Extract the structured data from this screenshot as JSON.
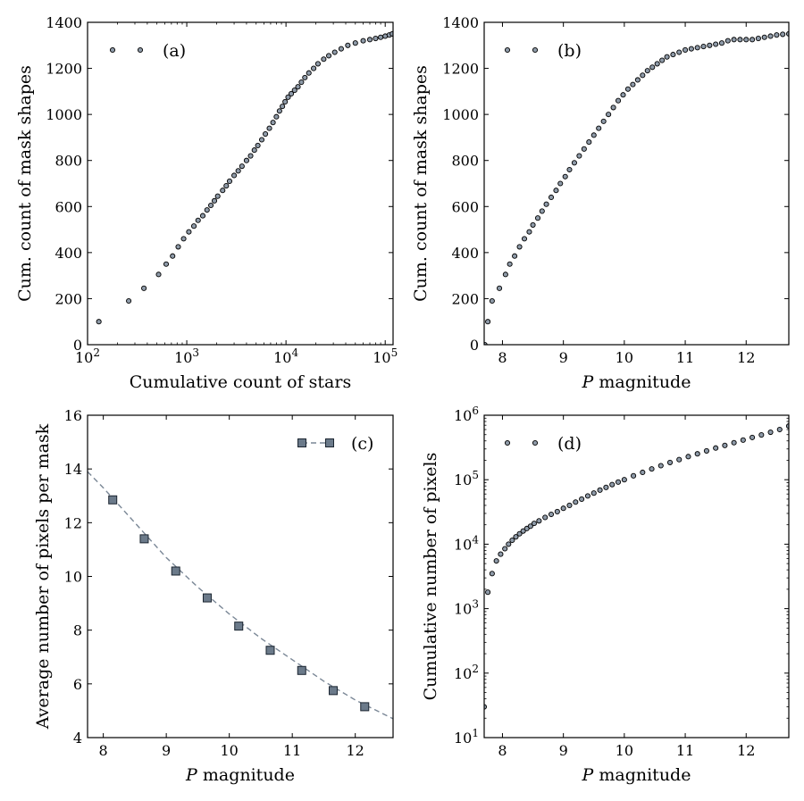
{
  "chart_data": [
    {
      "id": "a",
      "type": "scatter",
      "xscale": "log",
      "yscale": "linear",
      "xlim": [
        100,
        120000
      ],
      "ylim": [
        0,
        1400
      ],
      "xlabel": "Cumulative count of stars",
      "ylabel": "Cum. count of mask shapes",
      "legend": "(a)",
      "xticks": [
        {
          "v": 100,
          "b": "10",
          "e": "2"
        },
        {
          "v": 1000,
          "b": "10",
          "e": "3"
        },
        {
          "v": 10000,
          "b": "10",
          "e": "4"
        },
        {
          "v": 100000,
          "b": "10",
          "e": "5"
        }
      ],
      "yticks": [
        {
          "v": 0,
          "t": "0"
        },
        {
          "v": 200,
          "t": "200"
        },
        {
          "v": 400,
          "t": "400"
        },
        {
          "v": 600,
          "t": "600"
        },
        {
          "v": 800,
          "t": "800"
        },
        {
          "v": 1000,
          "t": "1000"
        },
        {
          "v": 1200,
          "t": "1200"
        },
        {
          "v": 1400,
          "t": "1400"
        }
      ],
      "series": [
        {
          "name": "(a)",
          "x": [
            130,
            260,
            370,
            520,
            620,
            720,
            820,
            930,
            1050,
            1180,
            1300,
            1450,
            1600,
            1750,
            1900,
            2050,
            2300,
            2500,
            2700,
            3000,
            3300,
            3600,
            4000,
            4400,
            4800,
            5200,
            5700,
            6200,
            6800,
            7400,
            8000,
            8600,
            9200,
            9800,
            10500,
            11300,
            12200,
            13200,
            14300,
            15500,
            17000,
            19000,
            21000,
            24000,
            27000,
            31000,
            36000,
            42000,
            50000,
            60000,
            70000,
            80000,
            90000,
            100000,
            110000,
            118000
          ],
          "y": [
            100,
            190,
            245,
            305,
            350,
            385,
            425,
            460,
            490,
            515,
            540,
            560,
            585,
            605,
            625,
            645,
            670,
            690,
            710,
            735,
            755,
            775,
            800,
            820,
            845,
            865,
            890,
            915,
            940,
            965,
            990,
            1015,
            1035,
            1055,
            1075,
            1090,
            1105,
            1120,
            1140,
            1160,
            1180,
            1200,
            1220,
            1240,
            1255,
            1270,
            1285,
            1300,
            1310,
            1320,
            1325,
            1330,
            1335,
            1340,
            1345,
            1350
          ]
        }
      ]
    },
    {
      "id": "b",
      "type": "scatter",
      "xscale": "linear",
      "yscale": "linear",
      "xlim": [
        7.7,
        12.7
      ],
      "ylim": [
        0,
        1400
      ],
      "xlabel_italic": "P",
      "xlabel": "magnitude",
      "ylabel": "Cum. count of mask shapes",
      "legend": "(b)",
      "xticks": [
        {
          "v": 8,
          "t": "8"
        },
        {
          "v": 9,
          "t": "9"
        },
        {
          "v": 10,
          "t": "10"
        },
        {
          "v": 11,
          "t": "11"
        },
        {
          "v": 12,
          "t": "12"
        }
      ],
      "yticks": [
        {
          "v": 0,
          "t": "0"
        },
        {
          "v": 200,
          "t": "200"
        },
        {
          "v": 400,
          "t": "400"
        },
        {
          "v": 600,
          "t": "600"
        },
        {
          "v": 800,
          "t": "800"
        },
        {
          "v": 1000,
          "t": "1000"
        },
        {
          "v": 1200,
          "t": "1200"
        },
        {
          "v": 1400,
          "t": "1400"
        }
      ],
      "series": [
        {
          "name": "(b)",
          "x": [
            7.71,
            7.76,
            7.83,
            7.95,
            8.05,
            8.12,
            8.2,
            8.28,
            8.36,
            8.44,
            8.5,
            8.58,
            8.65,
            8.72,
            8.8,
            8.88,
            8.95,
            9.03,
            9.1,
            9.18,
            9.26,
            9.34,
            9.42,
            9.5,
            9.58,
            9.66,
            9.74,
            9.82,
            9.9,
            9.98,
            10.06,
            10.14,
            10.22,
            10.3,
            10.38,
            10.46,
            10.54,
            10.62,
            10.7,
            10.8,
            10.9,
            11.0,
            11.1,
            11.2,
            11.3,
            11.4,
            11.5,
            11.6,
            11.7,
            11.8,
            11.9,
            12.0,
            12.1,
            12.2,
            12.3,
            12.4,
            12.5,
            12.6,
            12.7
          ],
          "y": [
            0,
            100,
            190,
            245,
            305,
            350,
            385,
            425,
            460,
            490,
            520,
            550,
            580,
            610,
            640,
            670,
            700,
            730,
            760,
            790,
            820,
            850,
            880,
            910,
            940,
            970,
            1000,
            1030,
            1060,
            1085,
            1110,
            1130,
            1150,
            1170,
            1190,
            1205,
            1220,
            1235,
            1250,
            1260,
            1270,
            1280,
            1285,
            1290,
            1295,
            1300,
            1305,
            1310,
            1320,
            1325,
            1325,
            1325,
            1325,
            1330,
            1335,
            1340,
            1345,
            1348,
            1350
          ]
        }
      ]
    },
    {
      "id": "c",
      "type": "line",
      "xscale": "linear",
      "yscale": "linear",
      "xlim": [
        7.75,
        12.6
      ],
      "ylim": [
        4,
        16
      ],
      "xlabel_italic": "P",
      "xlabel": "magnitude",
      "ylabel": "Average number of pixels per mask",
      "legend": "(c)",
      "xticks": [
        {
          "v": 8,
          "t": "8"
        },
        {
          "v": 9,
          "t": "9"
        },
        {
          "v": 10,
          "t": "10"
        },
        {
          "v": 11,
          "t": "11"
        },
        {
          "v": 12,
          "t": "12"
        }
      ],
      "yticks": [
        {
          "v": 4,
          "t": "4"
        },
        {
          "v": 6,
          "t": "6"
        },
        {
          "v": 8,
          "t": "8"
        },
        {
          "v": 10,
          "t": "10"
        },
        {
          "v": 12,
          "t": "12"
        },
        {
          "v": 14,
          "t": "14"
        },
        {
          "v": 16,
          "t": "16"
        }
      ],
      "curve": {
        "x": [
          7.75,
          8.0,
          8.5,
          9.0,
          9.5,
          10.0,
          10.5,
          11.0,
          11.5,
          12.0,
          12.6
        ],
        "y": [
          13.9,
          13.3,
          12.0,
          10.7,
          9.6,
          8.6,
          7.7,
          6.9,
          6.1,
          5.4,
          4.7
        ]
      },
      "series": [
        {
          "name": "(c)",
          "x": [
            8.15,
            8.65,
            9.15,
            9.65,
            10.15,
            10.65,
            11.15,
            11.65,
            12.15
          ],
          "y": [
            12.85,
            11.4,
            10.2,
            9.2,
            8.15,
            7.25,
            6.5,
            5.75,
            5.15
          ]
        }
      ]
    },
    {
      "id": "d",
      "type": "scatter",
      "xscale": "linear",
      "yscale": "log",
      "xlim": [
        7.7,
        12.7
      ],
      "ylim": [
        10,
        1000000
      ],
      "xlabel_italic": "P",
      "xlabel": "magnitude",
      "ylabel": "Cumulative number of pixels",
      "legend": "(d)",
      "xticks": [
        {
          "v": 8,
          "t": "8"
        },
        {
          "v": 9,
          "t": "9"
        },
        {
          "v": 10,
          "t": "10"
        },
        {
          "v": 11,
          "t": "11"
        },
        {
          "v": 12,
          "t": "12"
        }
      ],
      "yticks": [
        {
          "v": 10,
          "b": "10",
          "e": "1"
        },
        {
          "v": 100,
          "b": "10",
          "e": "2"
        },
        {
          "v": 1000,
          "b": "10",
          "e": "3"
        },
        {
          "v": 10000,
          "b": "10",
          "e": "4"
        },
        {
          "v": 100000,
          "b": "10",
          "e": "5"
        },
        {
          "v": 1000000,
          "b": "10",
          "e": "6"
        }
      ],
      "series": [
        {
          "name": "(d)",
          "x": [
            7.7,
            7.76,
            7.83,
            7.9,
            7.97,
            8.04,
            8.1,
            8.16,
            8.22,
            8.28,
            8.34,
            8.4,
            8.46,
            8.52,
            8.6,
            8.7,
            8.8,
            8.9,
            9.0,
            9.1,
            9.2,
            9.3,
            9.4,
            9.5,
            9.6,
            9.7,
            9.8,
            9.9,
            10.0,
            10.15,
            10.3,
            10.45,
            10.6,
            10.75,
            10.9,
            11.05,
            11.2,
            11.35,
            11.5,
            11.65,
            11.8,
            11.95,
            12.1,
            12.25,
            12.4,
            12.55,
            12.7
          ],
          "y": [
            30,
            1800,
            3500,
            5500,
            7000,
            8500,
            10000,
            11500,
            13000,
            14500,
            16000,
            17500,
            19000,
            21000,
            23000,
            26000,
            29000,
            32000,
            36000,
            40000,
            45000,
            50000,
            56000,
            62000,
            69000,
            76000,
            84000,
            92000,
            100000,
            115000,
            130000,
            147000,
            165000,
            185000,
            205000,
            228000,
            252000,
            280000,
            310000,
            340000,
            375000,
            412000,
            452000,
            495000,
            545000,
            600000,
            680000
          ]
        }
      ]
    }
  ]
}
